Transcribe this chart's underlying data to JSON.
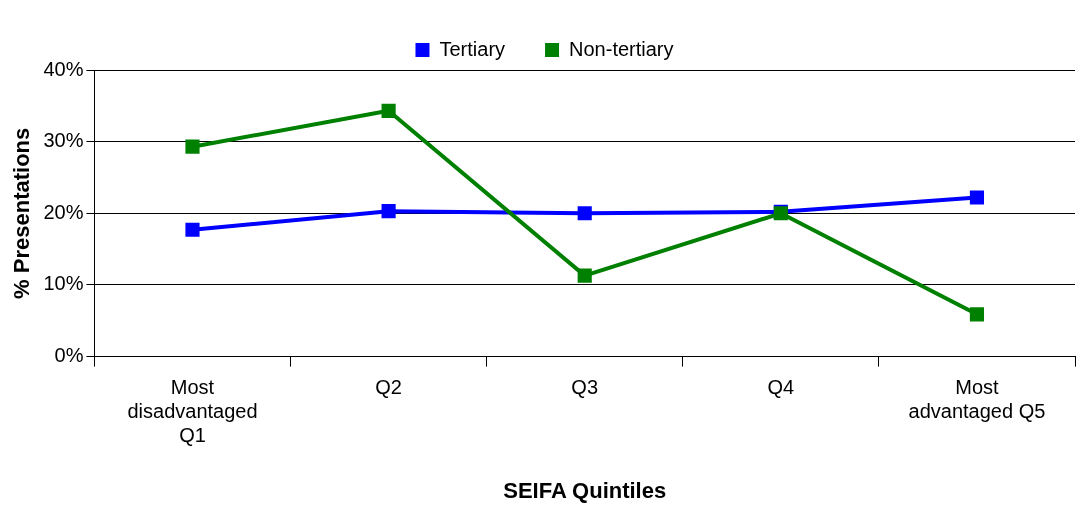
{
  "chart_data": {
    "type": "line",
    "xlabel": "SEIFA Quintiles",
    "ylabel": "% Presentations",
    "categories": [
      "Most disadvantaged Q1",
      "Q2",
      "Q3",
      "Q4",
      "Most advantaged Q5"
    ],
    "series": [
      {
        "name": "Tertiary",
        "color": "#0000ff",
        "values": [
          17.7,
          20.3,
          20.0,
          20.2,
          22.2
        ]
      },
      {
        "name": "Non-tertiary",
        "color": "#008000",
        "values": [
          29.3,
          34.3,
          11.3,
          20.0,
          5.9
        ]
      }
    ],
    "ylim": [
      0,
      40
    ],
    "yticks": [
      {
        "value": 0,
        "label": "0%"
      },
      {
        "value": 10,
        "label": "10%"
      },
      {
        "value": 20,
        "label": "20%"
      },
      {
        "value": 30,
        "label": "30%"
      },
      {
        "value": 40,
        "label": "40%"
      }
    ],
    "grid": "y",
    "legend": "top",
    "marker": "square",
    "line_style": "solid"
  }
}
